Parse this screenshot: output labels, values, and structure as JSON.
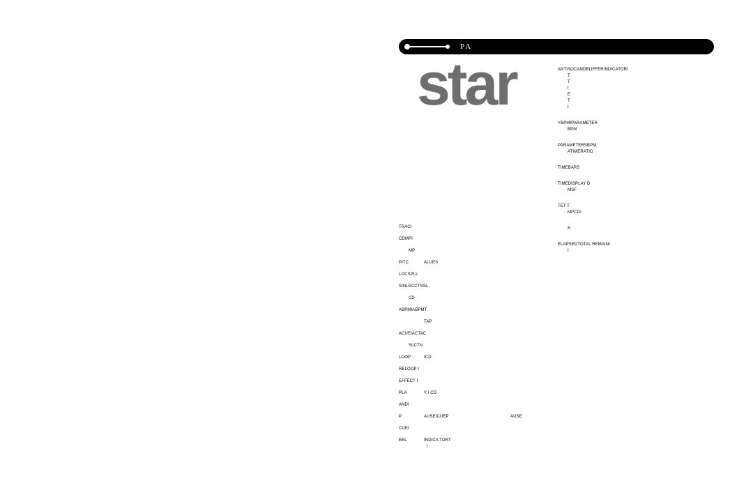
{
  "header": {
    "text": "PA"
  },
  "logo": "star",
  "right_column": [
    {
      "lines": [
        "ANTISOCANDBLIFFERINDICATORI",
        "T",
        "T",
        "I",
        "E",
        "T",
        "I"
      ],
      "indent_after": 0
    },
    {
      "lines": [
        "YBPMIPARAMETER",
        "BPM"
      ],
      "indent_after": 0
    },
    {
      "lines": [
        "PARAMETERSBPM",
        "ATIMERATIO"
      ],
      "indent_after": 0
    },
    {
      "lines": [
        "TIMEBARS"
      ]
    },
    {
      "lines": [
        "TIMEDISPLAY D",
        "MSF"
      ],
      "indent_after": 0
    },
    {
      "lines": [
        "TET T",
        "MPCDI"
      ],
      "indent_after": 0
    },
    {
      "lines": [
        "S"
      ],
      "indent_all": true
    },
    {
      "lines": [
        "ELAPSEDTOTAL REMAINI",
        "I"
      ],
      "indent_after": 0
    }
  ],
  "left_column": [
    {
      "c1": "TRACI"
    },
    {
      "c1": "CDMPI"
    },
    {
      "c1": "MP",
      "indent": true
    },
    {
      "c1": "PITC",
      "c2": "ALUES"
    },
    {
      "c1": "LOCSPLL"
    },
    {
      "c1": "SINLECCTNSL"
    },
    {
      "c1": "CD",
      "indent": true
    },
    {
      "c1": "ABPMIABPMT"
    },
    {
      "c1": "TAP",
      "indent": true,
      "indent_more": true
    },
    {
      "c1": "ACUEIACTAC"
    },
    {
      "c1": "SLCTN",
      "indent": true
    },
    {
      "c1": "LOOP",
      "c2": "ICD"
    },
    {
      "c1": "RELOOP I"
    },
    {
      "c1": "EFFECT I"
    },
    {
      "c1": "PLA",
      "c2": "Y I CD"
    },
    {
      "c1": "ANDI"
    },
    {
      "c1": "P",
      "c2": "AUSEICUEP",
      "c3": "AUSE"
    },
    {
      "c1": "CUEI"
    },
    {
      "c1": "EEL",
      "c2": "INDICA TORT"
    }
  ],
  "footer": "I",
  "colors": {
    "bar_bg": "#000000",
    "bar_fg": "#ffffff",
    "logo_color": "#6e6e6e",
    "text_color": "#000000",
    "page_bg": "#ffffff"
  }
}
